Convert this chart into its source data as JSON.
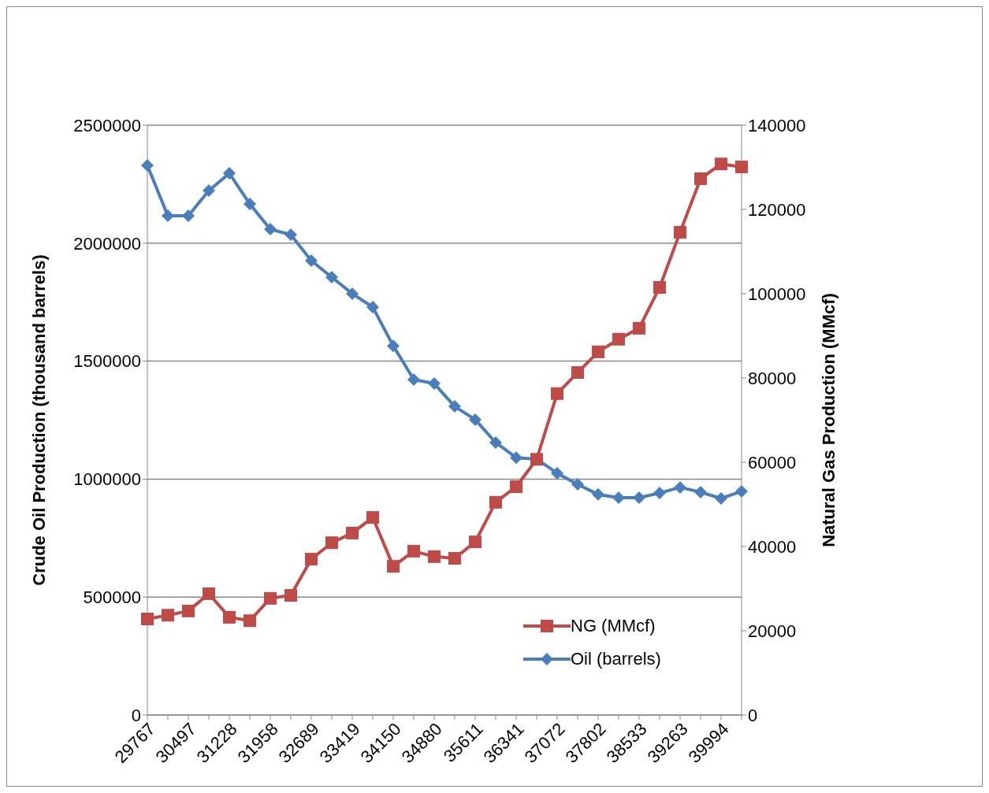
{
  "chart_data": {
    "type": "line",
    "ylabel": "Crude Oil Production (thousand barrels)",
    "y2label": "Natural Gas Production (MMcf)",
    "categories": [
      "29767",
      null,
      "30497",
      null,
      "31228",
      null,
      "31958",
      null,
      "32689",
      null,
      "33419",
      null,
      "34150",
      null,
      "34880",
      null,
      "35611",
      null,
      "36341",
      null,
      "37072",
      null,
      "37802",
      null,
      "38533",
      null,
      "39263",
      null,
      "39994",
      null
    ],
    "series": [
      {
        "name": "NG (MMcf)",
        "color": "#be4b48",
        "axis": "y2",
        "marker": "square",
        "values": [
          22800,
          23700,
          24700,
          28800,
          23200,
          22400,
          27700,
          28400,
          37000,
          40900,
          43200,
          46900,
          35300,
          38900,
          37600,
          37200,
          41100,
          50500,
          54200,
          60700,
          76300,
          81300,
          86200,
          89200,
          91800,
          101500,
          114600,
          127300,
          130800,
          130100
        ]
      },
      {
        "name": "Oil (barrels)",
        "color": "#4a7ebb",
        "marker": "diamond",
        "values": [
          2330000,
          2116000,
          2116000,
          2223000,
          2296000,
          2166000,
          2059000,
          2036000,
          1926000,
          1856000,
          1786000,
          1729000,
          1565000,
          1422000,
          1405000,
          1308000,
          1252000,
          1155000,
          1091000,
          1085000,
          1025000,
          978000,
          935000,
          921000,
          921000,
          941000,
          965000,
          945000,
          918000,
          948000
        ]
      }
    ],
    "ylim": [
      0,
      2500000
    ],
    "yticks": [
      0,
      500000,
      1000000,
      1500000,
      2000000,
      2500000
    ],
    "y2lim": [
      0,
      140000
    ],
    "y2ticks": [
      0,
      20000,
      40000,
      60000,
      80000,
      100000,
      120000,
      140000
    ],
    "grid": "y",
    "legend": "bottom right",
    "line_style": "solid"
  }
}
